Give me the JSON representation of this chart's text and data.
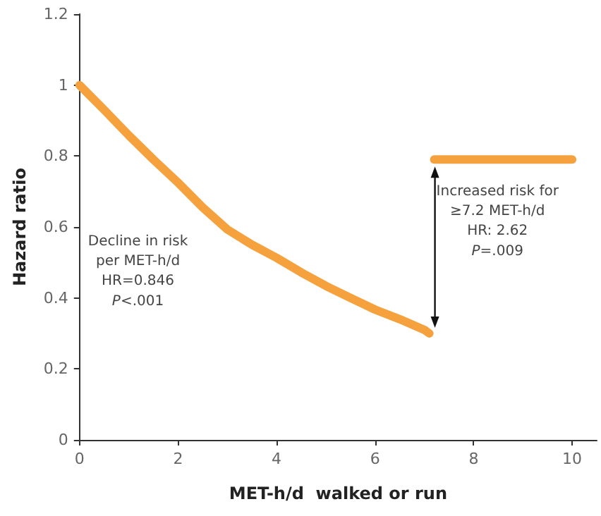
{
  "chart_data": {
    "type": "line",
    "xlabel": "MET-h/d  walked or run",
    "ylabel": "Hazard ratio",
    "series": [
      {
        "color": "#f5a23e",
        "x": [
          0,
          0.5,
          1,
          1.5,
          2,
          2.5,
          3,
          3.5,
          4,
          4.5,
          5,
          5.5,
          6,
          6.5,
          7,
          7.1
        ],
        "values": [
          1,
          0.93,
          0.858,
          0.79,
          0.725,
          0.655,
          0.593,
          0.55,
          0.513,
          0.472,
          0.434,
          0.4,
          0.367,
          0.34,
          0.31,
          0.3
        ]
      },
      {
        "color": "#f5a23e",
        "x": [
          7.2,
          10
        ],
        "values": [
          0.79,
          0.79
        ]
      }
    ],
    "xlim": [
      0,
      10.5
    ],
    "xticks": [
      0,
      2,
      4,
      6,
      8,
      10
    ],
    "ylim": [
      0,
      1.2
    ],
    "yticks": [
      0,
      0.2,
      0.4,
      0.6,
      0.8,
      1,
      1.2
    ],
    "grid": false,
    "marker": "none",
    "line_style": "solid",
    "annotations": [
      "Decline in risk\nper MET-h/d\nHR=0.846\nP<.001",
      "Increased risk for\n≥7.2 MET-h/d\nHR: 2.62\nP=.009"
    ]
  }
}
